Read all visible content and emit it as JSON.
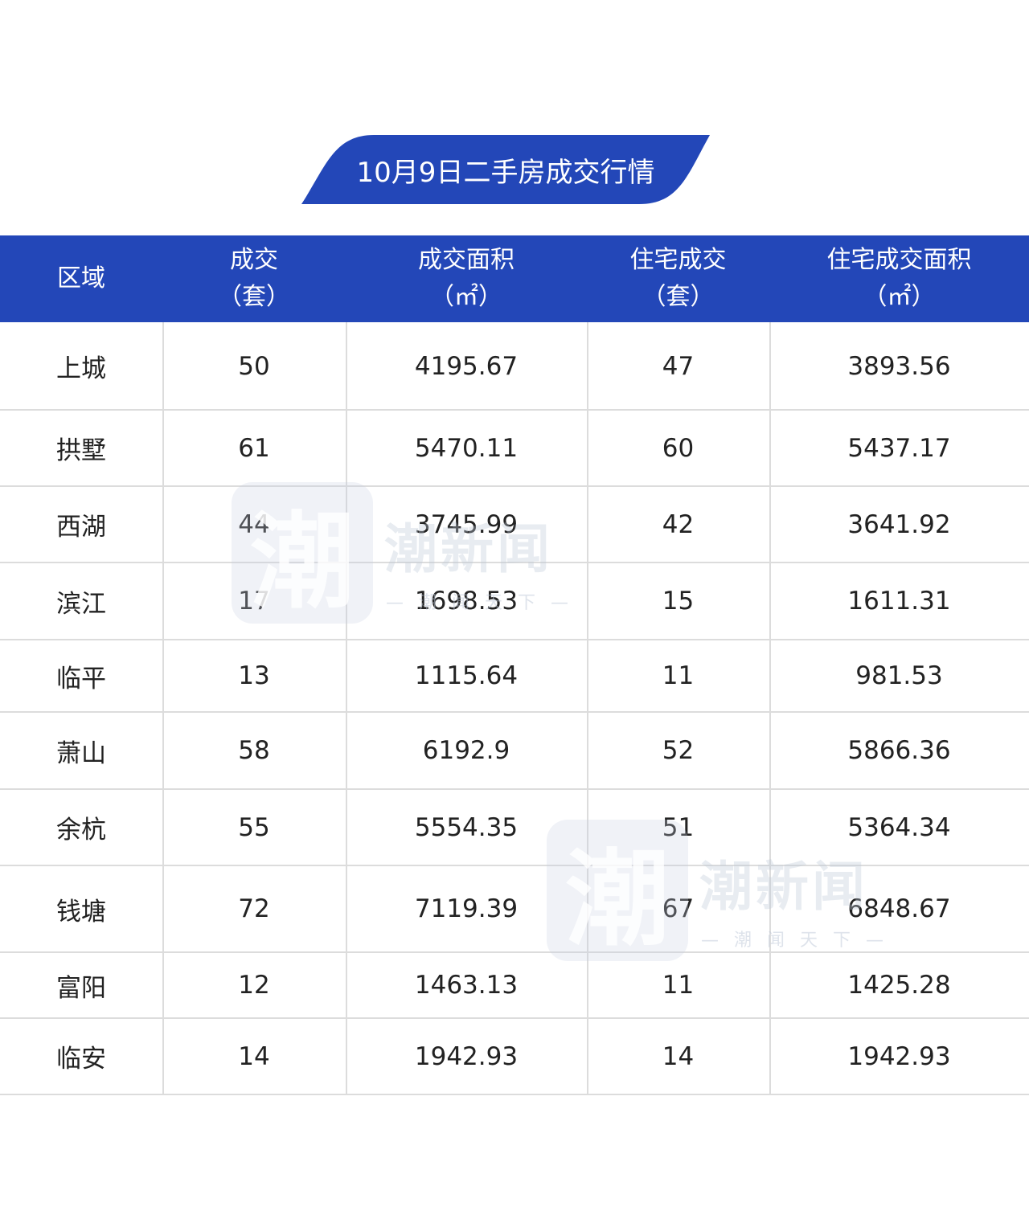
{
  "title": "10月9日二手房成交行情",
  "table": {
    "header": [
      [
        "区域"
      ],
      [
        "成交",
        "（套）"
      ],
      [
        "成交面积",
        "（㎡）"
      ],
      [
        "住宅成交",
        "（套）"
      ],
      [
        "住宅成交面积",
        "（㎡）"
      ]
    ],
    "rows": [
      [
        "上城",
        "50",
        "4195.67",
        "47",
        "3893.56"
      ],
      [
        "拱墅",
        "61",
        "5470.11",
        "60",
        "5437.17"
      ],
      [
        "西湖",
        "44",
        "3745.99",
        "42",
        "3641.92"
      ],
      [
        "滨江",
        "17",
        "1698.53",
        "15",
        "1611.31"
      ],
      [
        "临平",
        "13",
        "1115.64",
        "11",
        "981.53"
      ],
      [
        "萧山",
        "58",
        "6192.9",
        "52",
        "5866.36"
      ],
      [
        "余杭",
        "55",
        "5554.35",
        "51",
        "5364.34"
      ],
      [
        "钱塘",
        "72",
        "7119.39",
        "67",
        "6848.67"
      ],
      [
        "富阳",
        "12",
        "1463.13",
        "11",
        "1425.28"
      ],
      [
        "临安",
        "14",
        "1942.93",
        "14",
        "1942.93"
      ]
    ]
  },
  "watermark": {
    "logo": "潮",
    "name": "潮新闻",
    "slogan": "— 潮 闻 天 下 —"
  }
}
